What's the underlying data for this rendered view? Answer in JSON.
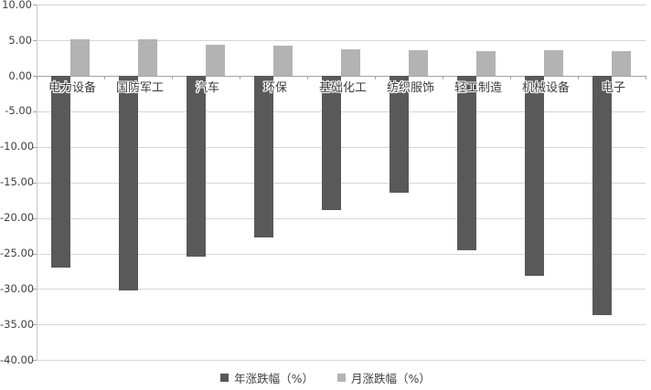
{
  "chart_data": {
    "type": "bar",
    "categories": [
      "电力设备",
      "国防军工",
      "汽车",
      "环保",
      "基础化工",
      "纺织服饰",
      "轻工制造",
      "机械设备",
      "电子"
    ],
    "series": [
      {
        "name": "年涨跌幅（%）",
        "color": "#595959",
        "values": [
          -27.0,
          -30.2,
          -25.4,
          -22.8,
          -18.9,
          -16.4,
          -24.5,
          -28.1,
          -33.7
        ]
      },
      {
        "name": "月涨跌幅（%）",
        "color": "#b3b3b3",
        "values": [
          5.2,
          5.1,
          4.4,
          4.2,
          3.7,
          3.6,
          3.5,
          3.6,
          3.5
        ]
      }
    ],
    "title": "",
    "xlabel": "",
    "ylabel": "",
    "ylim": [
      -40,
      10
    ],
    "ytick_step": 5,
    "ytick_labels": [
      "10.00",
      "5.00",
      "0.00",
      "-5.00",
      "-10.00",
      "-15.00",
      "-20.00",
      "-25.00",
      "-30.00",
      "-35.00",
      "-40.00"
    ],
    "grid": true,
    "legend_position": "bottom",
    "colors": {
      "gridline": "#d6d6d6",
      "axis": "#a3a3a3",
      "text": "#404040",
      "background": "#ffffff"
    }
  }
}
